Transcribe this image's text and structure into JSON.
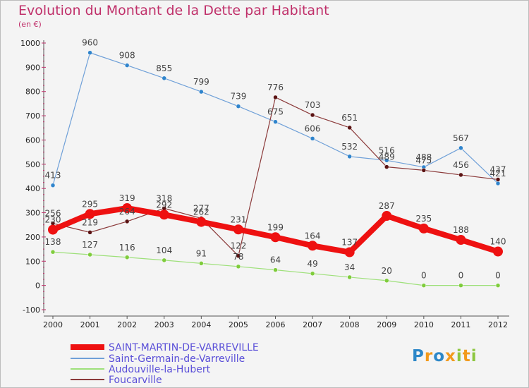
{
  "title": "Evolution du Montant de la Dette par Habitant",
  "unit_label": "(en €)",
  "logo": {
    "letters": [
      {
        "ch": "P",
        "color": "#2c87c8"
      },
      {
        "ch": "r",
        "color": "#f29a1c"
      },
      {
        "ch": "o",
        "color": "#2c87c8"
      },
      {
        "ch": "x",
        "color": "#f29a1c"
      },
      {
        "ch": "i",
        "color": "#8dc63f"
      },
      {
        "ch": "t",
        "color": "#f29a1c"
      },
      {
        "ch": "i",
        "color": "#8dc63f"
      }
    ]
  },
  "chart_data": {
    "type": "line",
    "title": "Evolution du Montant de la Dette par Habitant",
    "subtitle": "(en €)",
    "xlabel": "",
    "ylabel": "",
    "x": [
      "2000",
      "2001",
      "2002",
      "2003",
      "2004",
      "2005",
      "2006",
      "2007",
      "2008",
      "2009",
      "2010",
      "2011",
      "2012"
    ],
    "ylim": [
      -100,
      1000
    ],
    "yticks": [
      -100,
      0,
      100,
      200,
      300,
      400,
      500,
      600,
      700,
      800,
      900,
      1000
    ],
    "grid": false,
    "legend_position": "bottom-left",
    "series": [
      {
        "name": "SAINT-MARTIN-DE-VARREVILLE",
        "color": "#ee1111",
        "marker": "#ee1111",
        "width": 8,
        "values": [
          230,
          295,
          319,
          292,
          262,
          231,
          199,
          164,
          137,
          287,
          235,
          188,
          140
        ]
      },
      {
        "name": "Saint-Germain-de-Varreville",
        "color": "#6fa0d8",
        "marker": "#2f84cc",
        "width": 1.2,
        "values": [
          413,
          960,
          908,
          855,
          799,
          739,
          675,
          606,
          532,
          516,
          488,
          567,
          421
        ]
      },
      {
        "name": "Audouville-la-Hubert",
        "color": "#9ee07a",
        "marker": "#7fcc3c",
        "width": 1.2,
        "values": [
          138,
          127,
          116,
          104,
          91,
          78,
          64,
          49,
          34,
          20,
          0,
          0,
          0
        ]
      },
      {
        "name": "Foucarville",
        "color": "#8b3a3a",
        "marker": "#5a1212",
        "width": 1.2,
        "values": [
          256,
          219,
          264,
          318,
          277,
          122,
          776,
          703,
          651,
          489,
          475,
          456,
          437
        ]
      }
    ]
  }
}
